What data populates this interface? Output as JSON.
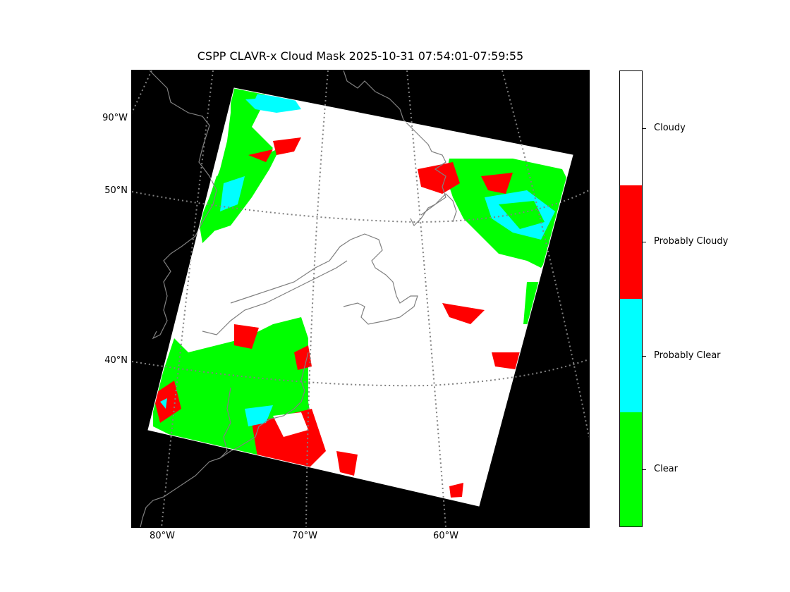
{
  "title": "CSPP CLAVR-x Cloud Mask 2025-10-31 07:54:01-07:59:55",
  "lat_labels": [
    "90°W",
    "50°N",
    "40°N"
  ],
  "lon_labels": [
    "80°W",
    "70°W",
    "60°W"
  ],
  "legend": {
    "categories": [
      {
        "label": "Cloudy",
        "color": "#ffffff"
      },
      {
        "label": "Probably Cloudy",
        "color": "#ff0000"
      },
      {
        "label": "Probably Clear",
        "color": "#00ffff"
      },
      {
        "label": "Clear",
        "color": "#00ff00"
      }
    ]
  },
  "colors": {
    "background": "#000000",
    "coastline": "#808080",
    "gridline": "#808080"
  }
}
